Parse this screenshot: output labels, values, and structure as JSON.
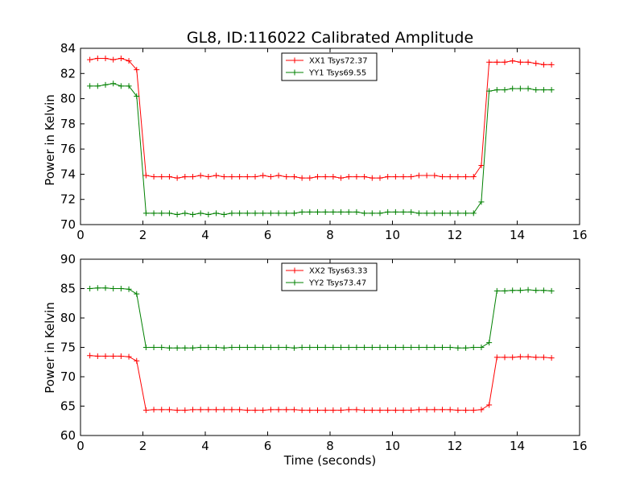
{
  "chart_data": [
    {
      "type": "line",
      "title": "GL8, ID:116022 Calibrated Amplitude",
      "xlabel": "",
      "ylabel": "Power in Kelvin",
      "xlim": [
        0,
        16
      ],
      "ylim": [
        70,
        84
      ],
      "xticks": [
        "0",
        "2",
        "4",
        "6",
        "8",
        "10",
        "12",
        "14",
        "16"
      ],
      "yticks": [
        "70",
        "72",
        "74",
        "76",
        "78",
        "80",
        "82",
        "84"
      ],
      "grid": false,
      "legend": "top-center",
      "series": [
        {
          "name": "XX1 Tsys72.37",
          "color": "#ff0000",
          "x": [
            0.3,
            0.55,
            0.8,
            1.05,
            1.3,
            1.55,
            1.8,
            2.1,
            2.35,
            2.6,
            2.85,
            3.1,
            3.35,
            3.6,
            3.85,
            4.1,
            4.35,
            4.6,
            4.85,
            5.1,
            5.35,
            5.6,
            5.85,
            6.1,
            6.35,
            6.6,
            6.85,
            7.1,
            7.35,
            7.6,
            7.85,
            8.1,
            8.35,
            8.6,
            8.85,
            9.1,
            9.35,
            9.6,
            9.85,
            10.1,
            10.35,
            10.6,
            10.85,
            11.1,
            11.35,
            11.6,
            11.85,
            12.1,
            12.35,
            12.6,
            12.85,
            13.1,
            13.35,
            13.6,
            13.85,
            14.1,
            14.35,
            14.6,
            14.85,
            15.1
          ],
          "y": [
            83.1,
            83.2,
            83.2,
            83.1,
            83.2,
            83.0,
            82.3,
            73.9,
            73.8,
            73.8,
            73.8,
            73.7,
            73.8,
            73.8,
            73.9,
            73.8,
            73.9,
            73.8,
            73.8,
            73.8,
            73.8,
            73.8,
            73.9,
            73.8,
            73.9,
            73.8,
            73.8,
            73.7,
            73.7,
            73.8,
            73.8,
            73.8,
            73.7,
            73.8,
            73.8,
            73.8,
            73.7,
            73.7,
            73.8,
            73.8,
            73.8,
            73.8,
            73.9,
            73.9,
            73.9,
            73.8,
            73.8,
            73.8,
            73.8,
            73.8,
            74.7,
            82.9,
            82.9,
            82.9,
            83.0,
            82.9,
            82.9,
            82.8,
            82.7,
            82.7
          ]
        },
        {
          "name": "YY1 Tsys69.55",
          "color": "#008000",
          "x": [
            0.3,
            0.55,
            0.8,
            1.05,
            1.3,
            1.55,
            1.8,
            2.1,
            2.35,
            2.6,
            2.85,
            3.1,
            3.35,
            3.6,
            3.85,
            4.1,
            4.35,
            4.6,
            4.85,
            5.1,
            5.35,
            5.6,
            5.85,
            6.1,
            6.35,
            6.6,
            6.85,
            7.1,
            7.35,
            7.6,
            7.85,
            8.1,
            8.35,
            8.6,
            8.85,
            9.1,
            9.35,
            9.6,
            9.85,
            10.1,
            10.35,
            10.6,
            10.85,
            11.1,
            11.35,
            11.6,
            11.85,
            12.1,
            12.35,
            12.6,
            12.85,
            13.1,
            13.35,
            13.6,
            13.85,
            14.1,
            14.35,
            14.6,
            14.85,
            15.1
          ],
          "y": [
            81.0,
            81.0,
            81.1,
            81.2,
            81.0,
            81.0,
            80.2,
            70.9,
            70.9,
            70.9,
            70.9,
            70.8,
            70.9,
            70.8,
            70.9,
            70.8,
            70.9,
            70.8,
            70.9,
            70.9,
            70.9,
            70.9,
            70.9,
            70.9,
            70.9,
            70.9,
            70.9,
            71.0,
            71.0,
            71.0,
            71.0,
            71.0,
            71.0,
            71.0,
            71.0,
            70.9,
            70.9,
            70.9,
            71.0,
            71.0,
            71.0,
            71.0,
            70.9,
            70.9,
            70.9,
            70.9,
            70.9,
            70.9,
            70.9,
            70.9,
            71.8,
            80.6,
            80.7,
            80.7,
            80.8,
            80.8,
            80.8,
            80.7,
            80.7,
            80.7
          ]
        }
      ]
    },
    {
      "type": "line",
      "title": "",
      "xlabel": "Time (seconds)",
      "ylabel": "Power in Kelvin",
      "xlim": [
        0,
        16
      ],
      "ylim": [
        60,
        90
      ],
      "xticks": [
        "0",
        "2",
        "4",
        "6",
        "8",
        "10",
        "12",
        "14",
        "16"
      ],
      "yticks": [
        "60",
        "65",
        "70",
        "75",
        "80",
        "85",
        "90"
      ],
      "grid": false,
      "legend": "top-center",
      "series": [
        {
          "name": "XX2 Tsys63.33",
          "color": "#ff0000",
          "x": [
            0.3,
            0.55,
            0.8,
            1.05,
            1.3,
            1.55,
            1.8,
            2.1,
            2.35,
            2.6,
            2.85,
            3.1,
            3.35,
            3.6,
            3.85,
            4.1,
            4.35,
            4.6,
            4.85,
            5.1,
            5.35,
            5.6,
            5.85,
            6.1,
            6.35,
            6.6,
            6.85,
            7.1,
            7.35,
            7.6,
            7.85,
            8.1,
            8.35,
            8.6,
            8.85,
            9.1,
            9.35,
            9.6,
            9.85,
            10.1,
            10.35,
            10.6,
            10.85,
            11.1,
            11.35,
            11.6,
            11.85,
            12.1,
            12.35,
            12.6,
            12.85,
            13.1,
            13.35,
            13.6,
            13.85,
            14.1,
            14.35,
            14.6,
            14.85,
            15.1
          ],
          "y": [
            73.6,
            73.5,
            73.5,
            73.5,
            73.5,
            73.4,
            72.7,
            64.3,
            64.4,
            64.4,
            64.4,
            64.3,
            64.3,
            64.4,
            64.4,
            64.4,
            64.4,
            64.4,
            64.4,
            64.4,
            64.3,
            64.3,
            64.3,
            64.4,
            64.4,
            64.4,
            64.4,
            64.3,
            64.3,
            64.3,
            64.3,
            64.3,
            64.3,
            64.4,
            64.4,
            64.3,
            64.3,
            64.3,
            64.3,
            64.3,
            64.3,
            64.3,
            64.4,
            64.4,
            64.4,
            64.4,
            64.4,
            64.3,
            64.3,
            64.3,
            64.4,
            65.2,
            73.3,
            73.3,
            73.3,
            73.4,
            73.4,
            73.3,
            73.3,
            73.2
          ]
        },
        {
          "name": "YY2 Tsys73.47",
          "color": "#008000",
          "x": [
            0.3,
            0.55,
            0.8,
            1.05,
            1.3,
            1.55,
            1.8,
            2.1,
            2.35,
            2.6,
            2.85,
            3.1,
            3.35,
            3.6,
            3.85,
            4.1,
            4.35,
            4.6,
            4.85,
            5.1,
            5.35,
            5.6,
            5.85,
            6.1,
            6.35,
            6.6,
            6.85,
            7.1,
            7.35,
            7.6,
            7.85,
            8.1,
            8.35,
            8.6,
            8.85,
            9.1,
            9.35,
            9.6,
            9.85,
            10.1,
            10.35,
            10.6,
            10.85,
            11.1,
            11.35,
            11.6,
            11.85,
            12.1,
            12.35,
            12.6,
            12.85,
            13.1,
            13.35,
            13.6,
            13.85,
            14.1,
            14.35,
            14.6,
            14.85,
            15.1
          ],
          "y": [
            85.0,
            85.1,
            85.1,
            85.0,
            85.0,
            84.9,
            84.1,
            75.0,
            75.0,
            75.0,
            74.9,
            74.9,
            74.9,
            74.9,
            75.0,
            75.0,
            75.0,
            74.9,
            75.0,
            75.0,
            75.0,
            75.0,
            75.0,
            75.0,
            75.0,
            75.0,
            74.9,
            75.0,
            75.0,
            75.0,
            75.0,
            75.0,
            75.0,
            75.0,
            75.0,
            75.0,
            75.0,
            75.0,
            75.0,
            75.0,
            75.0,
            75.0,
            75.0,
            75.0,
            75.0,
            75.0,
            75.0,
            74.9,
            74.9,
            75.0,
            75.0,
            75.8,
            84.6,
            84.6,
            84.7,
            84.7,
            84.8,
            84.7,
            84.7,
            84.6
          ]
        }
      ]
    }
  ]
}
